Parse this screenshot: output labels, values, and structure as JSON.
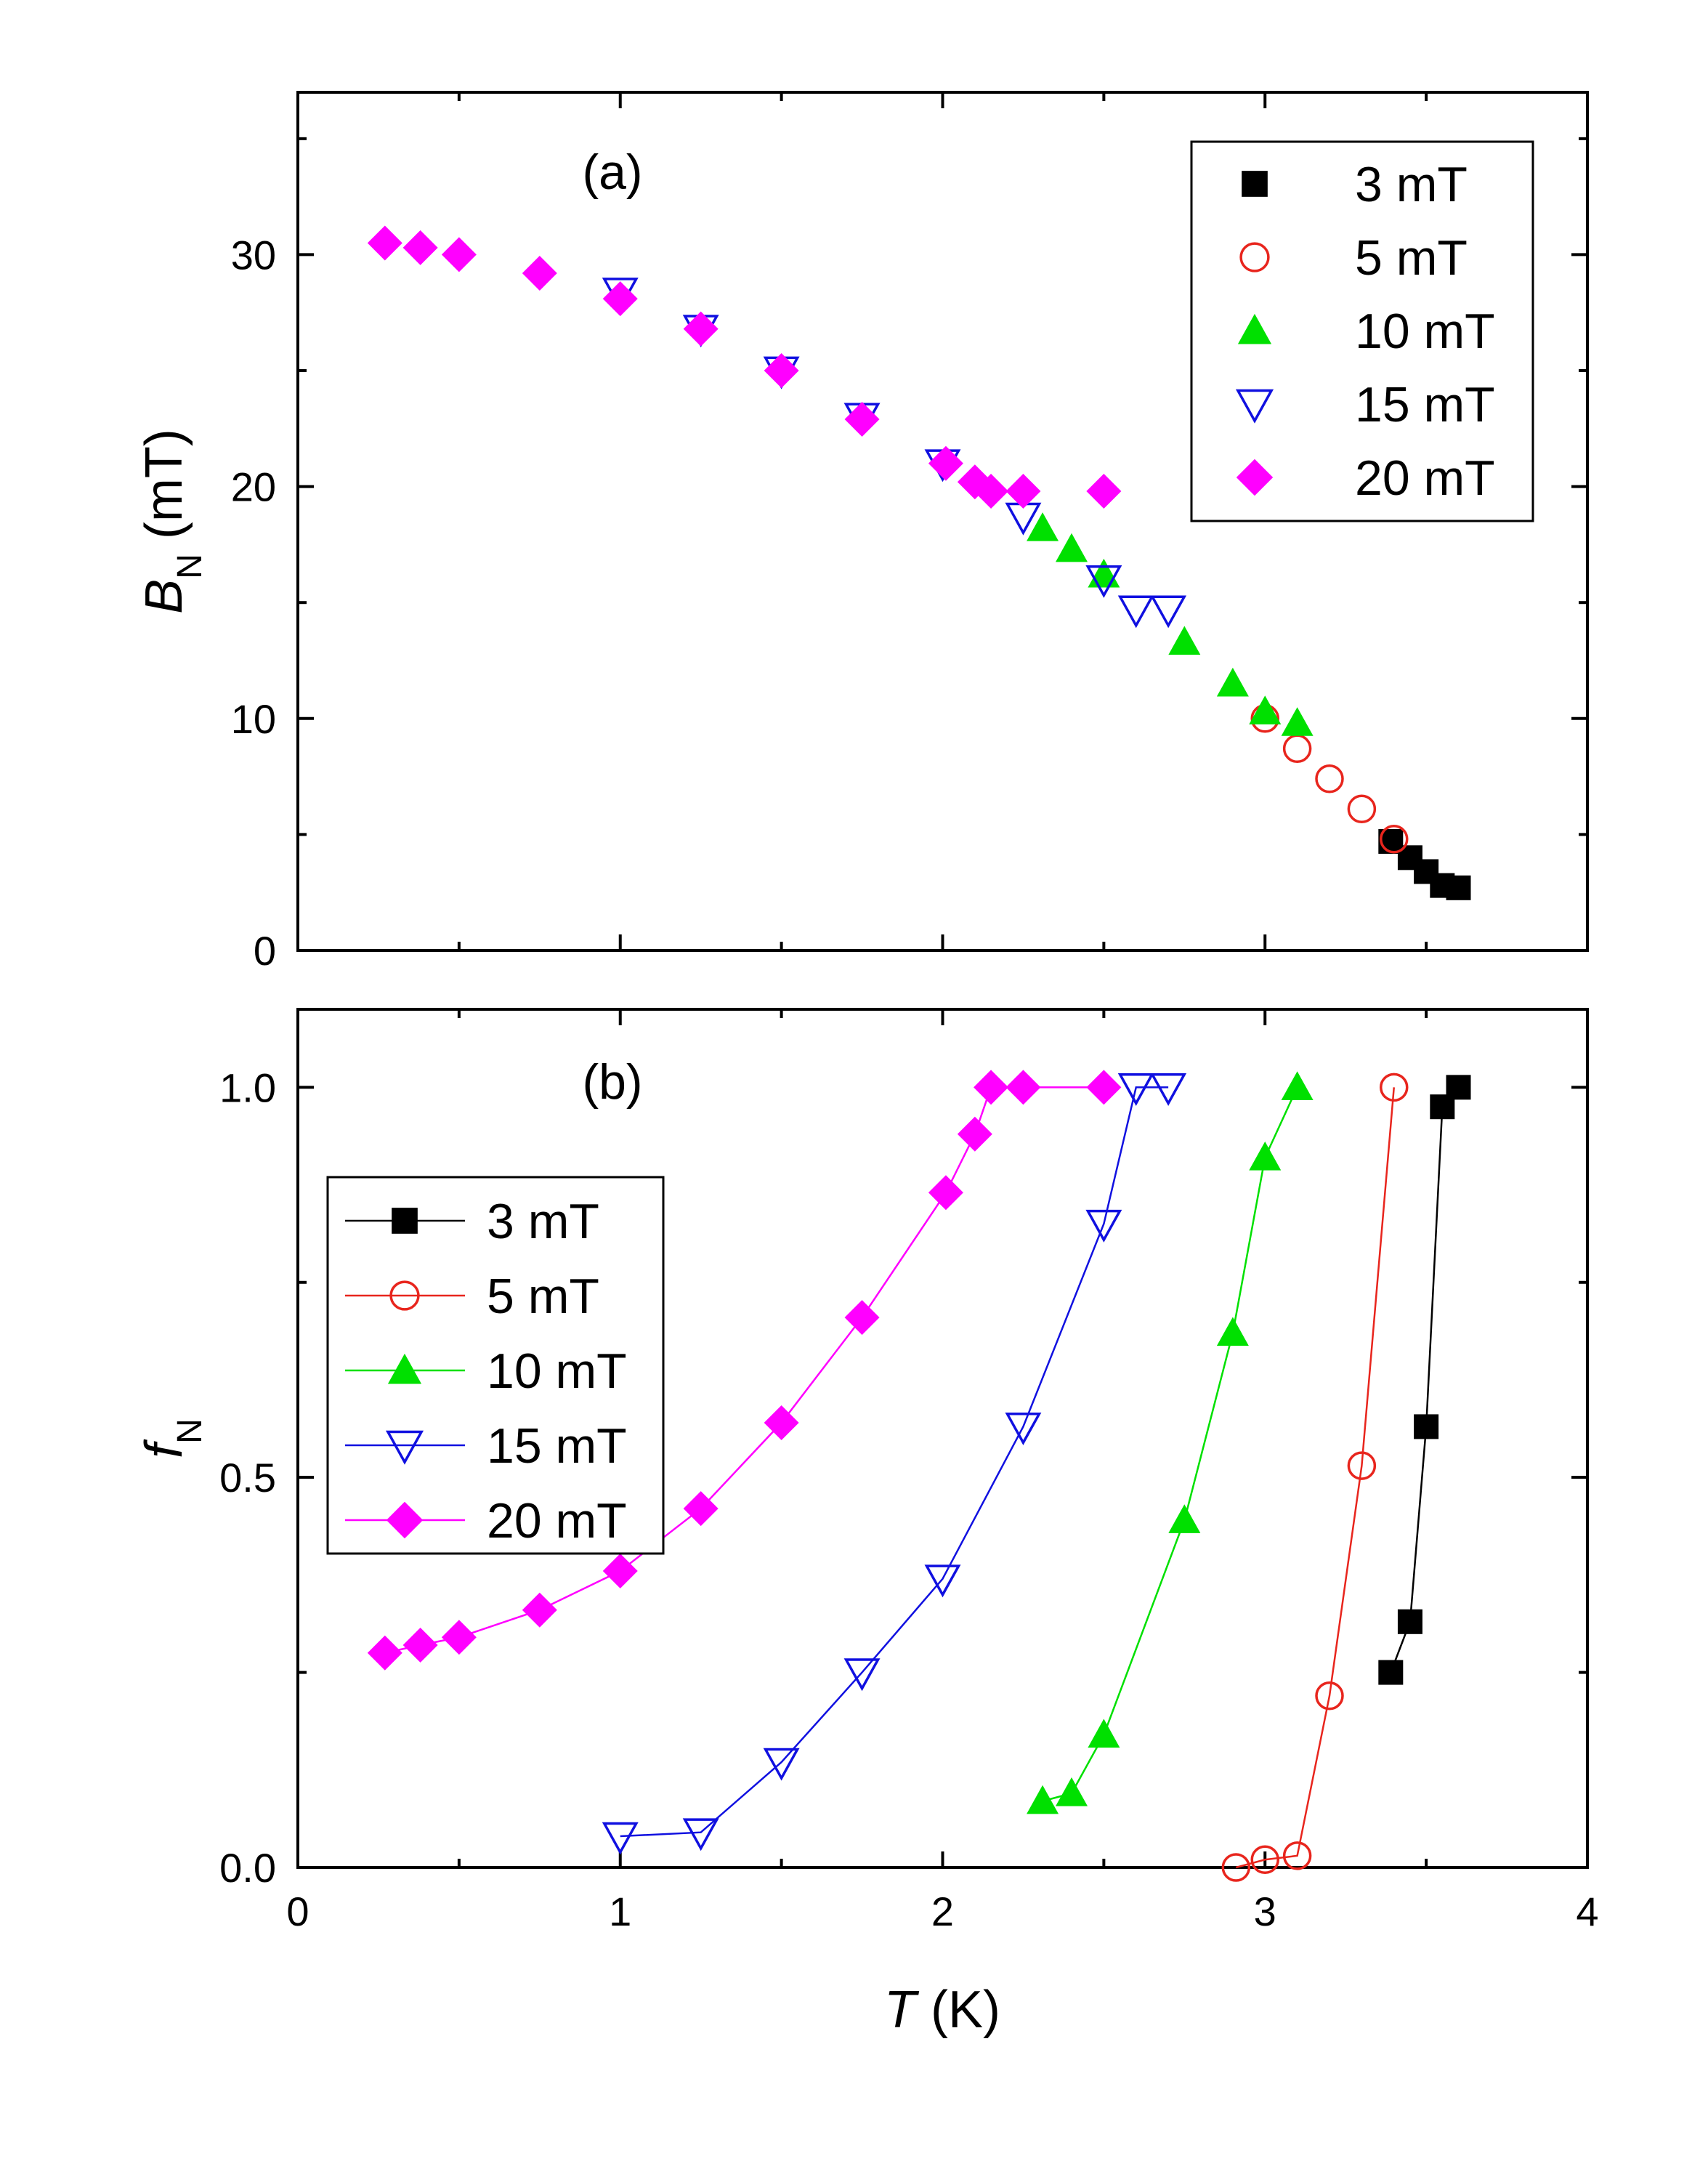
{
  "colors": {
    "3 mT": "#000000",
    "5 mT": "#e8251d",
    "10 mT": "#00e000",
    "15 mT": "#1010e0",
    "20 mT": "#ff00ff"
  },
  "shared_x": {
    "label_italic": "T",
    "label_rest": " (K)",
    "range": [
      0,
      4
    ],
    "ticks": [
      "0",
      "1",
      "2",
      "3",
      "4"
    ]
  },
  "chart_data": [
    {
      "type": "scatter",
      "panel": "(a)",
      "xlabel": "T (K)",
      "ylabel_main": "B",
      "ylabel_sub": "N",
      "ylabel_unit": " (mT)",
      "xlim": [
        0,
        4
      ],
      "ylim": [
        0,
        37
      ],
      "yticks": [
        "0",
        "10",
        "20",
        "30"
      ],
      "legend": "top-right",
      "series": [
        {
          "name": "3 mT",
          "marker": "square",
          "x": [
            3.39,
            3.45,
            3.5,
            3.55,
            3.6
          ],
          "y": [
            4.7,
            4.0,
            3.4,
            2.8,
            2.7
          ]
        },
        {
          "name": "5 mT",
          "marker": "circle",
          "x": [
            3.0,
            3.1,
            3.2,
            3.3,
            3.4
          ],
          "y": [
            10.0,
            8.7,
            7.4,
            6.1,
            4.8
          ]
        },
        {
          "name": "10 mT",
          "marker": "triangle-up",
          "x": [
            2.31,
            2.4,
            2.5,
            2.75,
            2.9,
            3.0,
            3.1
          ],
          "y": [
            18.2,
            17.3,
            16.2,
            13.3,
            11.5,
            10.3,
            9.8
          ]
        },
        {
          "name": "15 mT",
          "marker": "triangle-down",
          "x": [
            1.0,
            1.25,
            1.5,
            1.75,
            2.0,
            2.25,
            2.5,
            2.6,
            2.7
          ],
          "y": [
            28.4,
            26.8,
            25.0,
            23.0,
            21.0,
            18.7,
            16.0,
            14.7,
            14.7
          ]
        },
        {
          "name": "20 mT",
          "marker": "diamond",
          "x": [
            0.27,
            0.38,
            0.5,
            0.75,
            1.0,
            1.25,
            1.5,
            1.75,
            2.01,
            2.1,
            2.15,
            2.25,
            2.5
          ],
          "y": [
            30.5,
            30.3,
            30.0,
            29.2,
            28.1,
            26.8,
            25.0,
            22.9,
            21.0,
            20.2,
            19.8,
            19.8,
            19.8
          ]
        }
      ]
    },
    {
      "type": "line",
      "panel": "(b)",
      "xlabel": "T (K)",
      "ylabel_main": "f",
      "ylabel_sub": "N",
      "xlim": [
        0,
        4
      ],
      "ylim": [
        0,
        1.1
      ],
      "yticks": [
        "0.0",
        "0.5",
        "1.0"
      ],
      "legend": "center-left",
      "series": [
        {
          "name": "3 mT",
          "marker": "square",
          "x": [
            3.39,
            3.45,
            3.5,
            3.55,
            3.6
          ],
          "y": [
            0.25,
            0.315,
            0.565,
            0.975,
            1.0
          ]
        },
        {
          "name": "5 mT",
          "marker": "circle",
          "x": [
            2.91,
            3.0,
            3.1,
            3.2,
            3.3,
            3.4
          ],
          "y": [
            0.0,
            0.01,
            0.015,
            0.22,
            0.515,
            1.0
          ]
        },
        {
          "name": "10 mT",
          "marker": "triangle-up",
          "x": [
            2.31,
            2.4,
            2.5,
            2.75,
            2.9,
            3.0,
            3.1
          ],
          "y": [
            0.085,
            0.095,
            0.17,
            0.445,
            0.685,
            0.91,
            1.0
          ]
        },
        {
          "name": "15 mT",
          "marker": "triangle-down",
          "x": [
            1.0,
            1.25,
            1.5,
            1.75,
            2.0,
            2.25,
            2.5,
            2.6,
            2.7
          ],
          "y": [
            0.04,
            0.045,
            0.135,
            0.25,
            0.37,
            0.565,
            0.825,
            1.0,
            1.0
          ]
        },
        {
          "name": "20 mT",
          "marker": "diamond",
          "x": [
            0.27,
            0.38,
            0.5,
            0.75,
            1.0,
            1.25,
            1.5,
            1.75,
            2.01,
            2.1,
            2.15,
            2.25,
            2.5
          ],
          "y": [
            0.275,
            0.285,
            0.295,
            0.33,
            0.38,
            0.46,
            0.57,
            0.705,
            0.865,
            0.94,
            1.0,
            1.0,
            1.0
          ]
        }
      ]
    }
  ]
}
